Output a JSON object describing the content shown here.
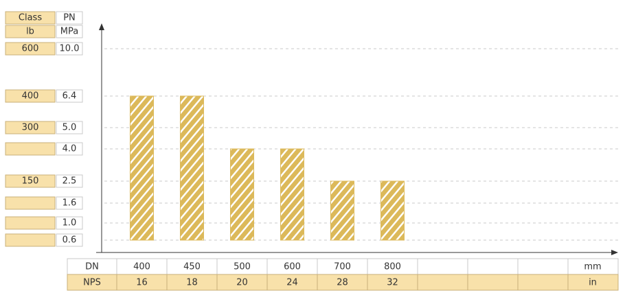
{
  "chart_data": {
    "type": "bar",
    "class_header": "Class",
    "class_unit": "lb",
    "pn_header": "PN",
    "pn_unit": "MPa",
    "yticks": [
      {
        "value": 10.0,
        "label": "10.0"
      },
      6.4,
      {
        "value": 5.0,
        "label": "5.0"
      },
      {
        "value": 4.0,
        "label": "4.0"
      },
      2.5,
      1.6,
      {
        "value": 1.0,
        "label": "1.0"
      },
      0.6
    ],
    "class_labels": [
      "600",
      "400",
      "300",
      null,
      "150",
      null,
      null,
      null
    ],
    "dn_header": "DN",
    "dn_unit": "mm",
    "nps_header": "NPS",
    "nps_unit": "in",
    "categories": [
      "400",
      "450",
      "500",
      "600",
      "700",
      "800",
      null,
      null,
      null
    ],
    "nps": [
      "16",
      "18",
      "20",
      "24",
      "28",
      "32",
      null,
      null,
      null
    ],
    "values": [
      6.4,
      6.4,
      4.0,
      4.0,
      2.5,
      2.5,
      null,
      null,
      null
    ],
    "color": "#dcb95a",
    "grid": true
  }
}
